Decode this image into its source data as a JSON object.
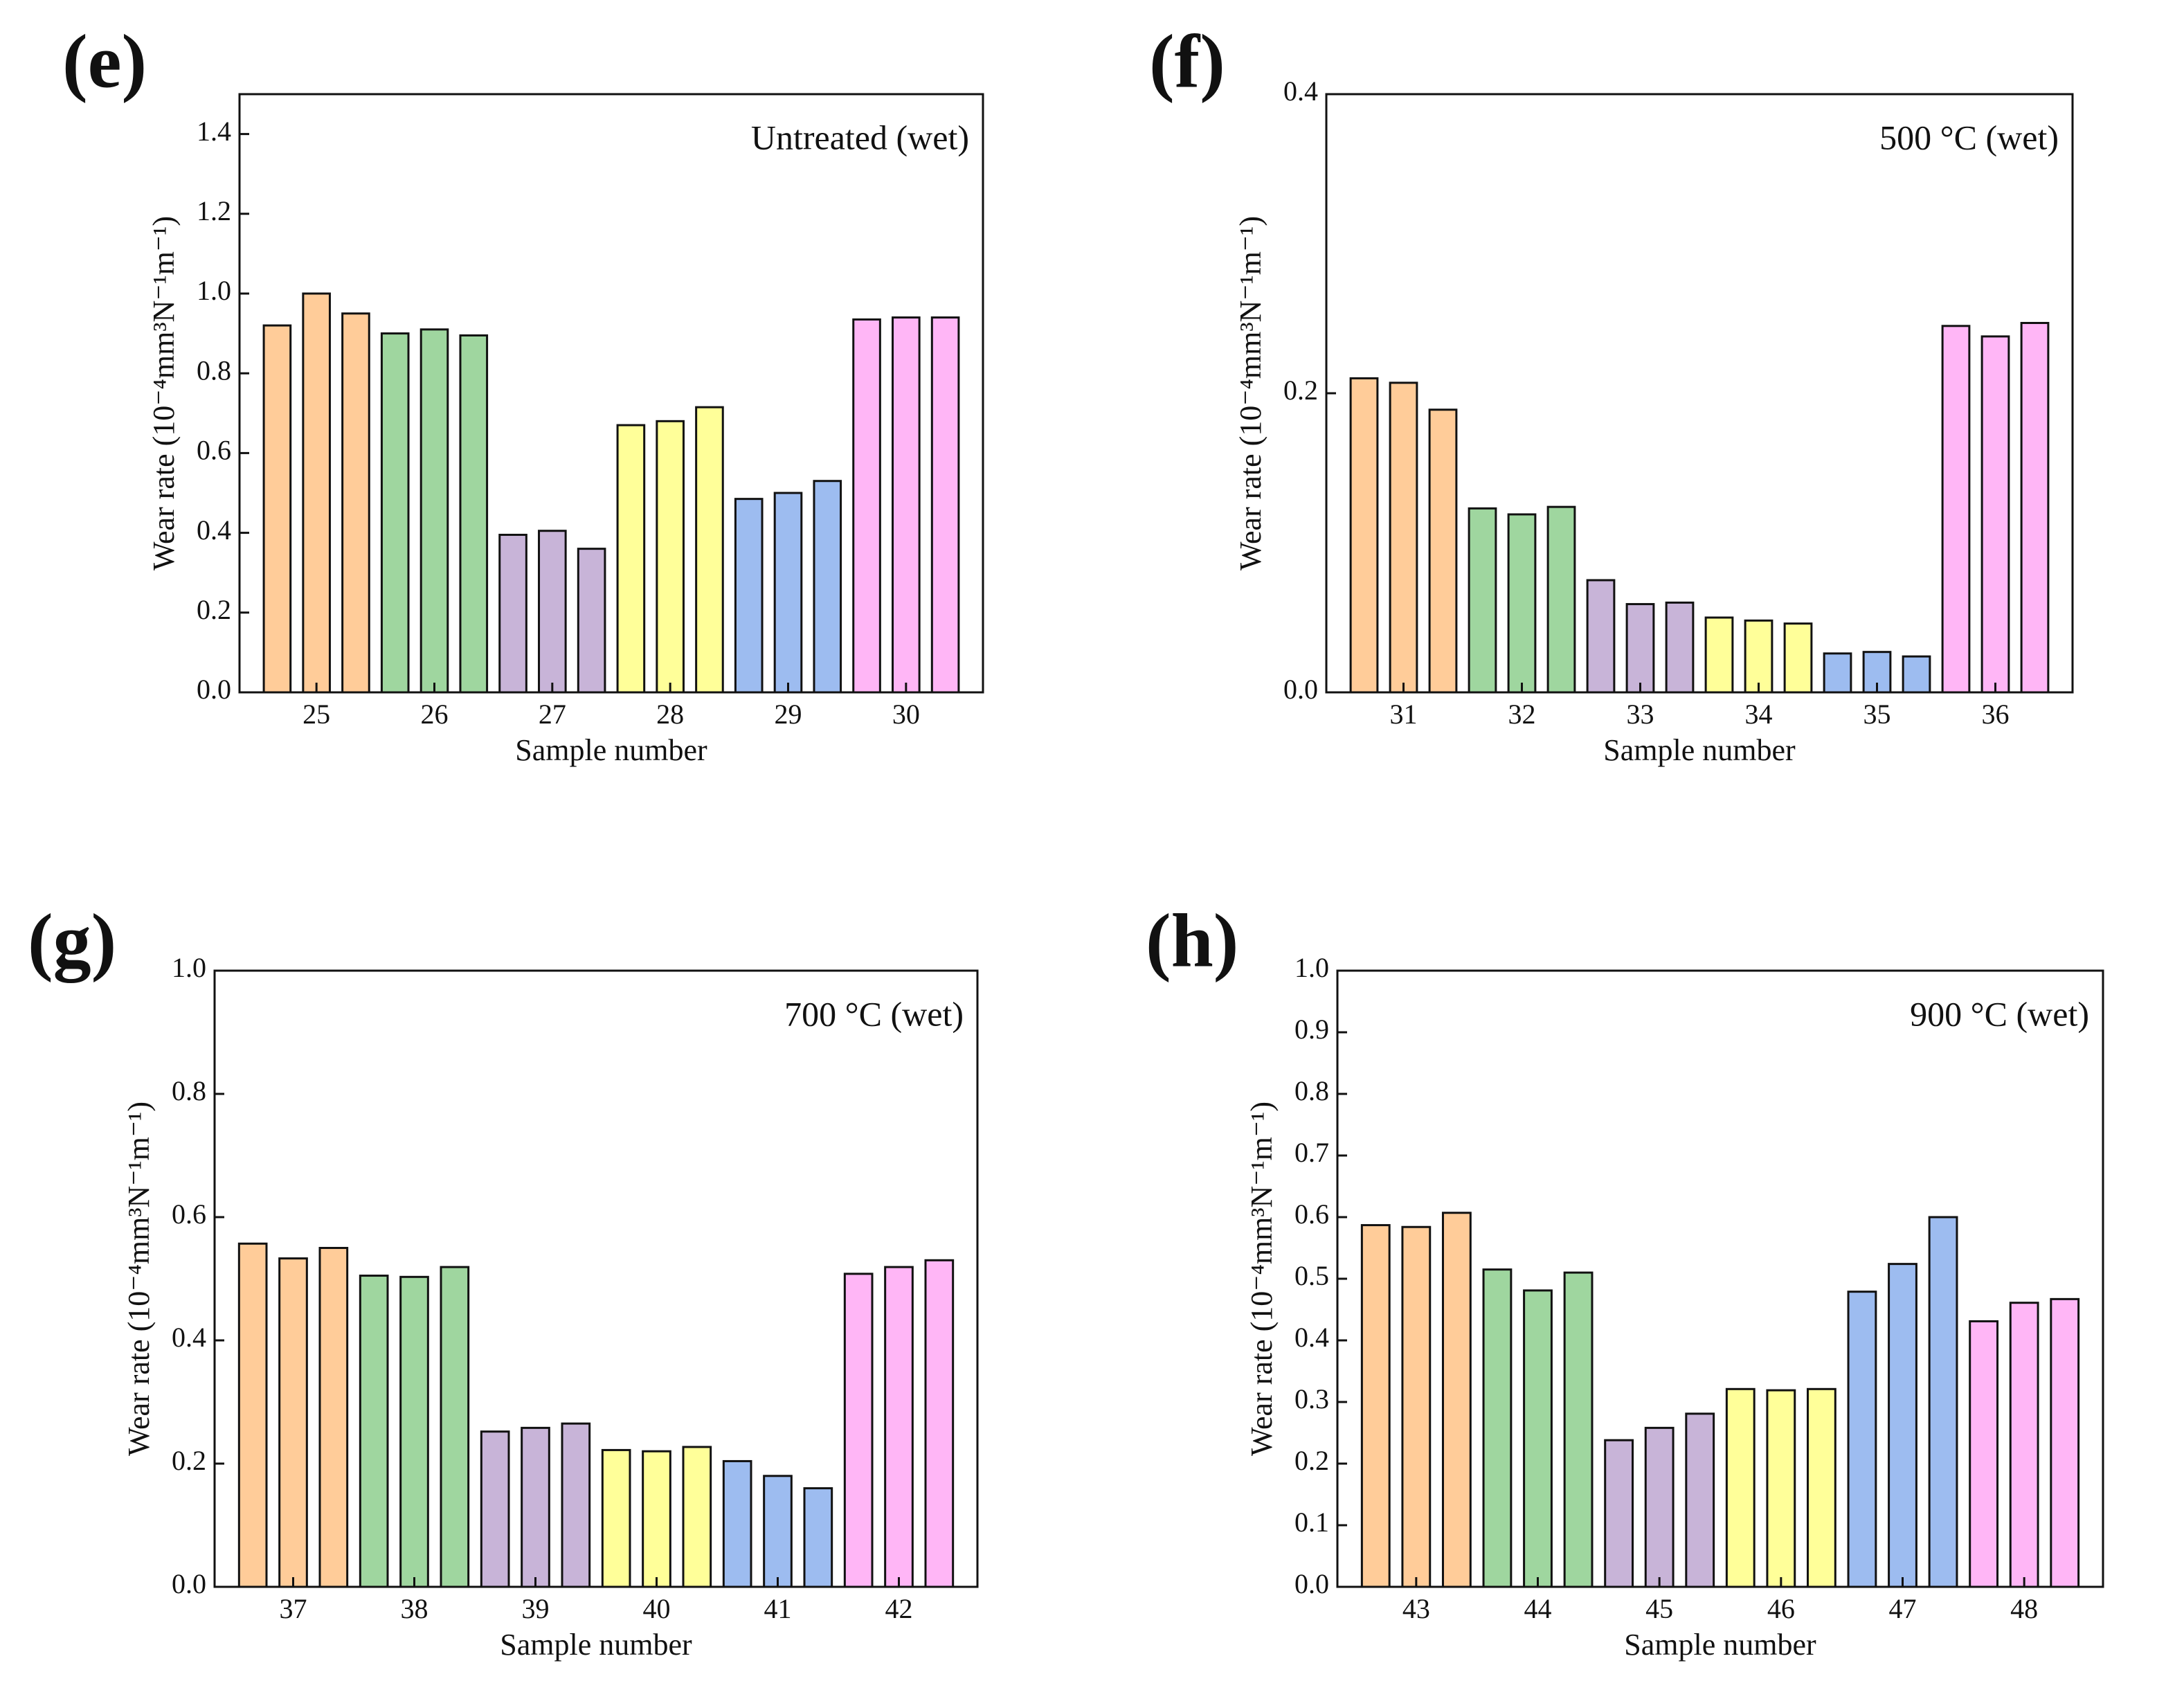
{
  "chart_data": [
    {
      "type": "bar",
      "panel": "(e)",
      "annotation": "Untreated (wet)",
      "xlabel": "Sample number",
      "ylabel": "Wear rate (10⁻⁴mm³N⁻¹m⁻¹)",
      "categories": [
        null,
        "25",
        null,
        null,
        "26",
        null,
        null,
        "27",
        null,
        null,
        "28",
        null,
        null,
        "29",
        null,
        null,
        "30",
        null
      ],
      "values": [
        0.92,
        1.0,
        0.95,
        0.9,
        0.91,
        0.895,
        0.395,
        0.405,
        0.36,
        0.67,
        0.68,
        0.715,
        0.485,
        0.5,
        0.53,
        0.935,
        0.94,
        0.94
      ],
      "colors": [
        "#ffcc99",
        "#9fd69f",
        "#c8b4d8",
        "#ffff99",
        "#9dbcf0",
        "#ffb6f6"
      ],
      "ylim": [
        0,
        1.5
      ],
      "yticks": [
        {
          "value": 0,
          "label": "0.0"
        },
        0.2,
        0.4,
        0.6,
        0.8,
        {
          "value": 1,
          "label": "1.0"
        },
        1.2,
        1.4
      ]
    },
    {
      "type": "bar",
      "panel": "(f)",
      "annotation": "500 °C (wet)",
      "xlabel": "Sample number",
      "ylabel": "Wear rate (10⁻⁴mm³N⁻¹m⁻¹)",
      "categories": [
        null,
        "31",
        null,
        null,
        "32",
        null,
        null,
        "33",
        null,
        null,
        "34",
        null,
        null,
        "35",
        null,
        null,
        "36",
        null
      ],
      "values": [
        0.21,
        0.207,
        0.189,
        0.123,
        0.119,
        0.124,
        0.075,
        0.059,
        0.06,
        0.05,
        0.048,
        0.046,
        0.026,
        0.027,
        0.024,
        0.245,
        0.238,
        0.247
      ],
      "colors": [
        "#ffcc99",
        "#9fd69f",
        "#c8b4d8",
        "#ffff99",
        "#9dbcf0",
        "#ffb6f6"
      ],
      "ylim": [
        0,
        0.4
      ],
      "yticks": [
        {
          "value": 0,
          "label": "0.0"
        },
        0.2,
        0.4
      ]
    },
    {
      "type": "bar",
      "panel": "(g)",
      "annotation": "700 °C (wet)",
      "xlabel": "Sample number",
      "ylabel": "Wear rate (10⁻⁴mm³N⁻¹m⁻¹)",
      "categories": [
        null,
        "37",
        null,
        null,
        "38",
        null,
        null,
        "39",
        null,
        null,
        "40",
        null,
        null,
        "41",
        null,
        null,
        "42",
        null
      ],
      "values": [
        0.557,
        0.533,
        0.55,
        0.505,
        0.503,
        0.519,
        0.252,
        0.258,
        0.265,
        0.222,
        0.22,
        0.227,
        0.204,
        0.18,
        0.16,
        0.508,
        0.519,
        0.53
      ],
      "colors": [
        "#ffcc99",
        "#9fd69f",
        "#c8b4d8",
        "#ffff99",
        "#9dbcf0",
        "#ffb6f6"
      ],
      "ylim": [
        0,
        1.0
      ],
      "yticks": [
        {
          "value": 0,
          "label": "0.0"
        },
        0.2,
        0.4,
        0.6,
        0.8,
        {
          "value": 1,
          "label": "1.0"
        }
      ]
    },
    {
      "type": "bar",
      "panel": "(h)",
      "annotation": "900 °C (wet)",
      "xlabel": "Sample number",
      "ylabel": "Wear rate (10⁻⁴mm³N⁻¹m⁻¹)",
      "categories": [
        null,
        "43",
        null,
        null,
        "44",
        null,
        null,
        "45",
        null,
        null,
        "46",
        null,
        null,
        "47",
        null,
        null,
        "48",
        null
      ],
      "values": [
        0.587,
        0.584,
        0.607,
        0.515,
        0.481,
        0.51,
        0.238,
        0.258,
        0.281,
        0.321,
        0.319,
        0.321,
        0.479,
        0.524,
        0.6,
        0.431,
        0.461,
        0.467
      ],
      "colors": [
        "#ffcc99",
        "#9fd69f",
        "#c8b4d8",
        "#ffff99",
        "#9dbcf0",
        "#ffb6f6"
      ],
      "ylim": [
        0,
        1.0
      ],
      "yticks": [
        {
          "value": 0,
          "label": "0.0"
        },
        0.1,
        0.2,
        0.3,
        0.4,
        0.5,
        0.6,
        0.7,
        0.8,
        0.9,
        {
          "value": 1,
          "label": "1.0"
        }
      ]
    }
  ]
}
